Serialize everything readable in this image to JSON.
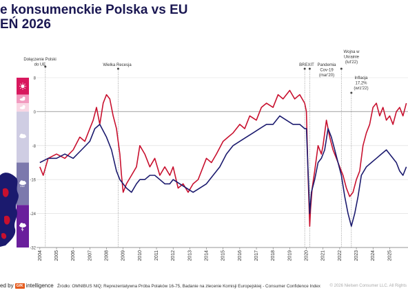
{
  "title_line1": "e konsumenckie Polska vs EU",
  "title_line2": "EŃ 2026",
  "footer": {
    "source": "Źródło: OMNIBUS NIQ; Reprezentatywna Próba Polaków 16-75, Badanie na zlecenie Komisji Europejskiej - Consumer Confidence Index",
    "copyright": "© 2026 Nielsen Consumer LLC. All Rights",
    "brand_prefix": "ed by",
    "brand_logo": "GfK",
    "brand_suffix": "intelligence"
  },
  "colors": {
    "poland": "#c8102e",
    "eu": "#1b1a6e",
    "zero_line": "#b5b5b5",
    "grid": "#d9d9d9",
    "band_1": "#d8185e",
    "band_2": "#f29bc0",
    "band_3": "#f9d6e4",
    "band_4": "#cfcde3",
    "band_5": "#7c79ad",
    "band_6": "#6a1f9c"
  },
  "icons": [
    "sun-icon",
    "sun-cloud-icon",
    "cloud-sun-icon",
    "cloud-icon",
    "rain-cloud-icon",
    "storm-cloud-icon"
  ],
  "chart_data": {
    "type": "line",
    "ylim": [
      -32,
      8
    ],
    "yticks": [
      "8",
      "0",
      "-8",
      "-16",
      "-24",
      "-32"
    ],
    "ytick_values": [
      8,
      0,
      -8,
      -16,
      -24,
      -32
    ],
    "xlim": [
      2003.8,
      2026.1
    ],
    "xticks": [
      "2004",
      "2005",
      "2006",
      "2007",
      "2008",
      "2009",
      "2010",
      "2011",
      "2012",
      "2013",
      "2014",
      "2015",
      "2016",
      "2017",
      "2018",
      "2019",
      "2020",
      "2021",
      "2022",
      "2023",
      "2024",
      "2025"
    ],
    "xtick_values": [
      2004,
      2005,
      2006,
      2007,
      2008,
      2009,
      2010,
      2011,
      2012,
      2013,
      2014,
      2015,
      2016,
      2017,
      2018,
      2019,
      2020,
      2021,
      2022,
      2023,
      2024,
      2025
    ],
    "grid": true,
    "legend": "none",
    "events": [
      {
        "label": [
          "Dołączenie Polski",
          "do UE"
        ],
        "x": 2004.33
      },
      {
        "label": [
          "Wielka Recesja"
        ],
        "x": 2008.7
      },
      {
        "label": [
          "BREXIT"
        ],
        "x": 2019.9
      },
      {
        "label": [
          "Pandemia",
          "Cov-19",
          "(mar'20)"
        ],
        "x": 2020.2
      },
      {
        "label": [
          "Wojna w",
          "Ukrainie",
          "(lut'22)"
        ],
        "x": 2022.1
      },
      {
        "label": [
          "Inflacja",
          "17,2%",
          "(wrz'22)"
        ],
        "x": 2022.7
      }
    ],
    "series": [
      {
        "color": "#c8102e",
        "x": [
          2004.0,
          2004.2,
          2004.5,
          2005.0,
          2005.5,
          2006.0,
          2006.4,
          2006.7,
          2007.0,
          2007.2,
          2007.4,
          2007.6,
          2007.8,
          2008.0,
          2008.2,
          2008.4,
          2008.6,
          2008.8,
          2008.9,
          2009.0,
          2009.2,
          2009.5,
          2009.8,
          2010.0,
          2010.3,
          2010.6,
          2010.9,
          2011.2,
          2011.5,
          2011.8,
          2012.0,
          2012.3,
          2012.6,
          2012.9,
          2013.2,
          2013.5,
          2013.8,
          2014.0,
          2014.3,
          2014.6,
          2015.0,
          2015.3,
          2015.6,
          2016.0,
          2016.3,
          2016.6,
          2017.0,
          2017.3,
          2017.6,
          2018.0,
          2018.3,
          2018.6,
          2019.0,
          2019.3,
          2019.6,
          2019.9,
          2020.0,
          2020.1,
          2020.2,
          2020.25,
          2020.35,
          2020.5,
          2020.7,
          2020.9,
          2021.0,
          2021.2,
          2021.4,
          2021.6,
          2021.8,
          2022.0,
          2022.2,
          2022.4,
          2022.6,
          2022.8,
          2023.0,
          2023.2,
          2023.4,
          2023.6,
          2023.8,
          2024.0,
          2024.2,
          2024.4,
          2024.6,
          2024.8,
          2025.0,
          2025.2,
          2025.4,
          2025.6,
          2025.8,
          2026.0
        ],
        "values": [
          -13,
          -15,
          -11,
          -10,
          -11,
          -9,
          -6,
          -7,
          -4,
          -2,
          1,
          -3,
          2,
          4,
          3,
          -1,
          -4,
          -10,
          -15,
          -19,
          -17,
          -15,
          -13,
          -8,
          -10,
          -13,
          -11,
          -15,
          -13,
          -15,
          -13,
          -18,
          -17,
          -19,
          -17,
          -16,
          -13,
          -11,
          -12,
          -10,
          -7,
          -6,
          -5,
          -3,
          -4,
          -1,
          -2,
          1,
          2,
          1,
          4,
          3,
          5,
          3,
          4,
          2,
          0,
          -15,
          -27,
          -23,
          -18,
          -14,
          -8,
          -10,
          -8,
          -2,
          -6,
          -9,
          -11,
          -13,
          -15,
          -18,
          -20,
          -19,
          -16,
          -14,
          -8,
          -5,
          -3,
          1,
          2,
          -1,
          1,
          -2,
          -1,
          -3,
          0,
          1,
          -1,
          2
        ]
      },
      {
        "color": "#1b1a6e",
        "x": [
          2004.0,
          2004.5,
          2005.0,
          2005.5,
          2006.0,
          2006.5,
          2007.0,
          2007.3,
          2007.6,
          2008.0,
          2008.3,
          2008.6,
          2008.8,
          2009.0,
          2009.2,
          2009.5,
          2009.8,
          2010.0,
          2010.3,
          2010.6,
          2010.9,
          2011.2,
          2011.5,
          2011.8,
          2012.0,
          2012.4,
          2012.8,
          2013.2,
          2013.6,
          2014.0,
          2014.4,
          2014.8,
          2015.2,
          2015.6,
          2016.0,
          2016.4,
          2016.8,
          2017.2,
          2017.6,
          2018.0,
          2018.4,
          2018.8,
          2019.2,
          2019.6,
          2019.9,
          2020.0,
          2020.1,
          2020.2,
          2020.3,
          2020.5,
          2020.7,
          2020.9,
          2021.1,
          2021.3,
          2021.5,
          2021.7,
          2021.9,
          2022.1,
          2022.3,
          2022.5,
          2022.7,
          2022.9,
          2023.1,
          2023.3,
          2023.6,
          2023.9,
          2024.2,
          2024.5,
          2024.8,
          2025.0,
          2025.2,
          2025.4,
          2025.6,
          2025.8,
          2026.0
        ],
        "values": [
          -12,
          -11,
          -11,
          -10,
          -11,
          -9,
          -7,
          -4,
          -3,
          -6,
          -9,
          -14,
          -16,
          -17,
          -18,
          -19,
          -17,
          -16,
          -16,
          -15,
          -15,
          -16,
          -17,
          -17,
          -16,
          -17,
          -18,
          -19,
          -18,
          -17,
          -15,
          -13,
          -10,
          -8,
          -7,
          -6,
          -5,
          -4,
          -3,
          -3,
          -1,
          -2,
          -3,
          -3,
          -4,
          -4,
          -14,
          -24,
          -19,
          -16,
          -12,
          -11,
          -9,
          -4,
          -6,
          -9,
          -12,
          -15,
          -20,
          -24,
          -27,
          -24,
          -20,
          -15,
          -13,
          -12,
          -11,
          -10,
          -9,
          -10,
          -11,
          -12,
          -14,
          -15,
          -13
        ]
      }
    ]
  }
}
